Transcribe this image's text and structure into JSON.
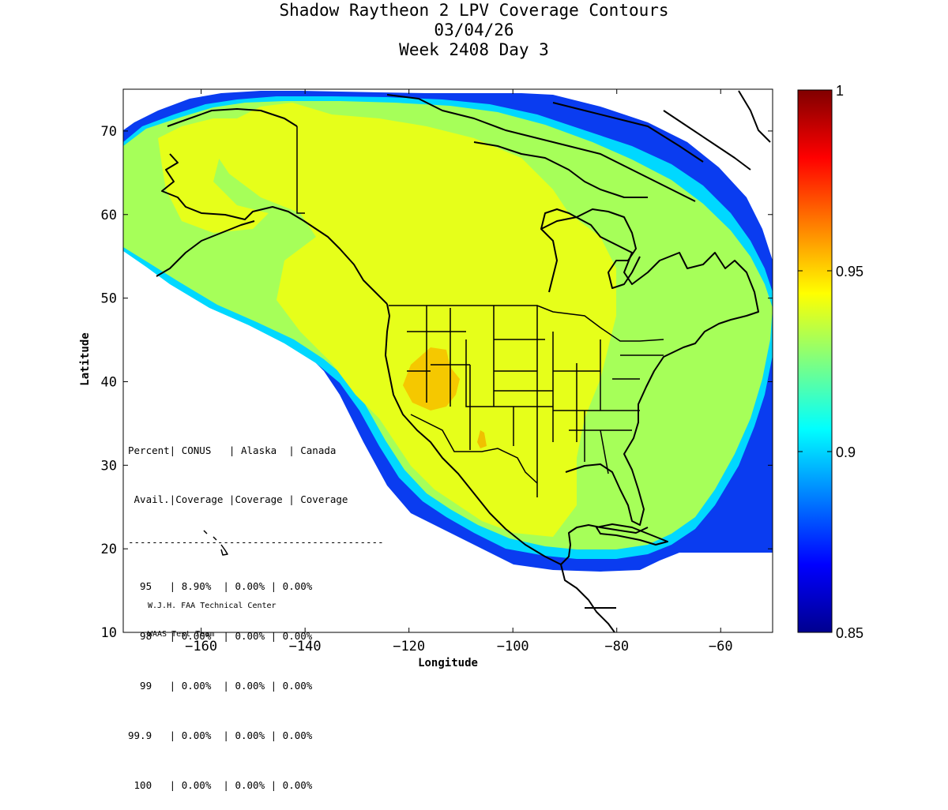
{
  "chart_data": {
    "type": "heatmap",
    "title": [
      "Shadow Raytheon 2 LPV Coverage Contours",
      "03/04/26",
      "Week 2408 Day 3"
    ],
    "xlabel": "Longitude",
    "ylabel": "Latitude",
    "xlim": [
      -175,
      -50
    ],
    "ylim": [
      10,
      75
    ],
    "x_ticks": [
      -160,
      -140,
      -120,
      -100,
      -80,
      -60
    ],
    "y_ticks": [
      10,
      20,
      30,
      40,
      50,
      60,
      70
    ],
    "colorbar": {
      "range": [
        0.85,
        1.0
      ],
      "ticks": [
        0.85,
        0.9,
        0.95,
        1
      ]
    },
    "coverage_regions": [
      {
        "name": "outer-edge",
        "value": 0.86
      },
      {
        "name": "cyan-band",
        "value": 0.905
      },
      {
        "name": "green-band",
        "value": 0.925
      },
      {
        "name": "main-coverage",
        "value": 0.94
      },
      {
        "name": "nevada-peak",
        "value": 0.95
      },
      {
        "name": "new-mexico-peak",
        "value": 0.952
      }
    ],
    "availability_table": {
      "header_row1": "Percent| CONUS   | Alaska  | Canada",
      "header_row2": " Avail.|Coverage |Coverage | Coverage",
      "separator": "-------------------------------------------",
      "rows": [
        "  95   | 8.90%  | 0.00% | 0.00%",
        "  98   | 0.00%  | 0.00% | 0.00%",
        "  99   | 0.00%  | 0.00% | 0.00%",
        "99.9   | 0.00%  | 0.00% | 0.00%",
        " 100   | 0.00%  | 0.00% | 0.00%"
      ]
    }
  },
  "credits": [
    "W.J.H. FAA Technical Center",
    "WAAS Test Team"
  ]
}
